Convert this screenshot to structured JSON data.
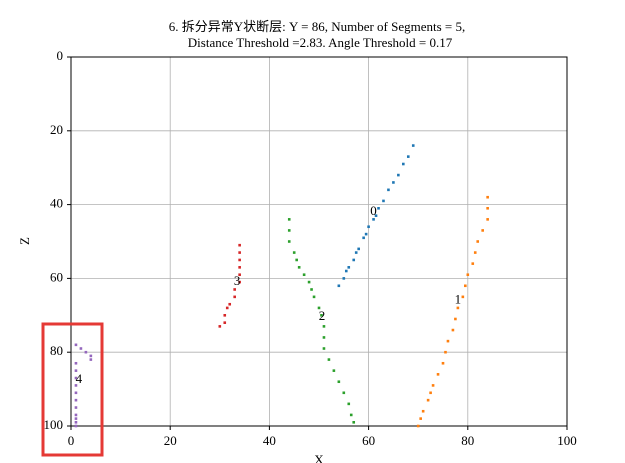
{
  "chart_data": {
    "type": "scatter",
    "title": [
      "6. 拆分异常Y状断层: Y = 86, Number of Segments = 5,",
      "Distance Threshold =2.83. Angle Threshold = 0.17"
    ],
    "xlabel": "X",
    "ylabel": "Z",
    "xlim": [
      0,
      100
    ],
    "ylim": [
      100,
      0
    ],
    "xticks": [
      0,
      20,
      40,
      60,
      80,
      100
    ],
    "yticks": [
      0,
      20,
      40,
      60,
      80,
      100
    ],
    "grid": true,
    "series": [
      {
        "color": "#1f77b4",
        "x": [
          54,
          55,
          55.5,
          56,
          57,
          57.5,
          58,
          59,
          59.5,
          60,
          61,
          61.5,
          62,
          63,
          64,
          65,
          66,
          67,
          68,
          69
        ],
        "values": [
          62,
          60,
          58,
          57,
          55,
          53,
          52,
          49,
          48,
          46,
          44,
          43,
          41,
          39,
          36,
          34,
          32,
          29,
          27,
          24
        ]
      },
      {
        "color": "#ff7f0e",
        "x": [
          70,
          70.5,
          71,
          72,
          72.5,
          73,
          74,
          75,
          75.5,
          76,
          77,
          77.5,
          78,
          79,
          79.5,
          80,
          81,
          81.5,
          82,
          83,
          84,
          84,
          84
        ],
        "values": [
          100,
          98,
          96,
          93,
          91,
          89,
          86,
          83,
          80,
          77,
          74,
          71,
          68,
          65,
          62,
          59,
          56,
          53,
          50,
          47,
          44,
          41,
          38
        ]
      },
      {
        "color": "#2ca02c",
        "x": [
          44,
          44,
          44,
          45,
          45.5,
          46,
          47,
          48,
          48.5,
          49,
          50,
          50.5,
          51,
          51,
          51,
          52,
          53,
          54,
          55,
          56,
          56.5,
          57
        ],
        "values": [
          44,
          47,
          50,
          53,
          55,
          57,
          59,
          61,
          63,
          65,
          68,
          70,
          73,
          76,
          79,
          82,
          85,
          88,
          91,
          94,
          97,
          99
        ]
      },
      {
        "color": "#d62728",
        "x": [
          30,
          31,
          31,
          31.5,
          32,
          33,
          33,
          34,
          34,
          34,
          34,
          34,
          34
        ],
        "values": [
          73,
          72,
          70,
          68,
          67,
          65,
          63,
          61,
          59,
          57,
          55,
          53,
          51
        ]
      },
      {
        "color": "#9467bd",
        "x": [
          1,
          2,
          3,
          4,
          4,
          1,
          1,
          1,
          1,
          1,
          1,
          1,
          1,
          1,
          1,
          1
        ],
        "values": [
          78,
          79,
          80,
          81,
          82,
          83,
          85,
          87,
          89,
          91,
          93,
          95,
          97,
          98,
          99,
          100
        ]
      }
    ],
    "annotations": [
      {
        "text": "0",
        "x": 61,
        "y": 42
      },
      {
        "text": "1",
        "x": 78,
        "y": 66
      },
      {
        "text": "2",
        "x": 50.6,
        "y": 70.5
      },
      {
        "text": "3",
        "x": 33.5,
        "y": 61
      },
      {
        "text": "4",
        "x": 1.6,
        "y": 87.5
      }
    ]
  }
}
